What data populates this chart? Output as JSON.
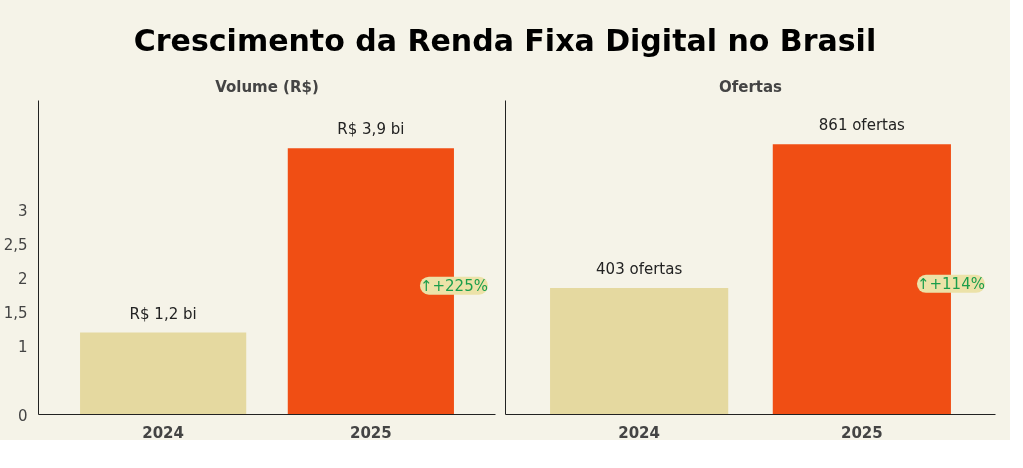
{
  "chart_data": [
    {
      "type": "bar",
      "title": "Crescimento da Renda Fixa Digital no Brasil",
      "subtitle": "Volume (R$)",
      "categories": [
        "2024",
        "2025"
      ],
      "values": [
        1.2,
        3.9
      ],
      "colors": [
        "#e5d9a0",
        "#f04e14"
      ],
      "value_labels": [
        "R$ 1,2 bi",
        "R$ 3,9 bi"
      ],
      "ylim": [
        0,
        4.6
      ],
      "yticks": [
        0,
        1,
        {
          "value": 1.5,
          "label": "1,5"
        },
        2,
        {
          "value": 2.5,
          "label": "2,5"
        },
        3
      ],
      "grid": false,
      "annotations": [
        "↑+225%"
      ]
    },
    {
      "type": "bar",
      "subtitle": "Ofertas",
      "categories": [
        "2024",
        "2025"
      ],
      "values": [
        403,
        861
      ],
      "colors": [
        "#e5d9a0",
        "#f04e14"
      ],
      "value_labels": [
        "403 ofertas",
        "861 ofertas"
      ],
      "ylim": [
        0,
        1000
      ],
      "tick_labels": "x",
      "grid": false,
      "annotations": [
        "↑+114%"
      ]
    }
  ]
}
